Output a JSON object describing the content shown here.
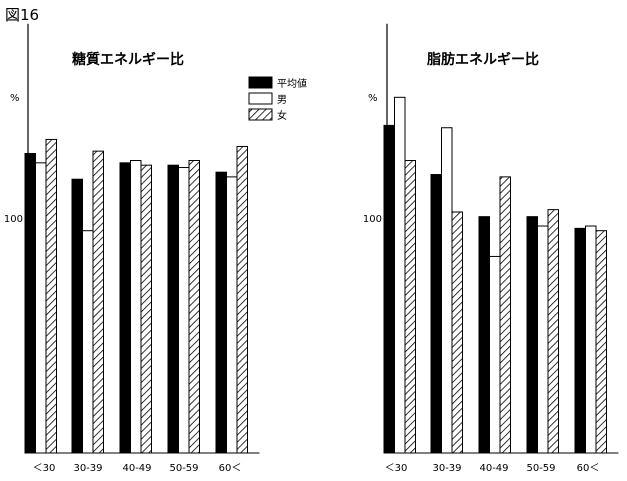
{
  "figure_label": "図16",
  "legend": [
    {
      "label": "平均値",
      "style": "solid"
    },
    {
      "label": "男",
      "style": "outline"
    },
    {
      "label": "女",
      "style": "hatched"
    }
  ],
  "colors": {
    "ink": "#000000",
    "background": "#ffffff"
  },
  "chart_data": [
    {
      "type": "bar",
      "title": "糖質エネルギー比",
      "unit": "%",
      "categories": [
        "＜30",
        "30-39",
        "40-49",
        "50-59",
        "60＜"
      ],
      "y_tick_labels": [
        {
          "value": 100,
          "label": "100"
        }
      ],
      "ylim": [
        0,
        180
      ],
      "series": [
        {
          "name": "平均値",
          "values": [
            128,
            117,
            124,
            123,
            120
          ]
        },
        {
          "name": "男",
          "values": [
            124,
            95,
            125,
            122,
            118
          ]
        },
        {
          "name": "女",
          "values": [
            134,
            129,
            123,
            125,
            131
          ]
        }
      ],
      "grid": false,
      "legend_position": "top-right"
    },
    {
      "type": "bar",
      "title": "脂肪エネルギー比",
      "unit": "%",
      "categories": [
        "＜30",
        "30-39",
        "40-49",
        "50-59",
        "60＜"
      ],
      "y_tick_labels": [
        {
          "value": 100,
          "label": "100"
        }
      ],
      "ylim": [
        0,
        180
      ],
      "series": [
        {
          "name": "平均値",
          "values": [
            140,
            119,
            101,
            101,
            96
          ]
        },
        {
          "name": "男",
          "values": [
            152,
            139,
            84,
            97,
            97
          ]
        },
        {
          "name": "女",
          "values": [
            125,
            103,
            118,
            104,
            95
          ]
        }
      ],
      "grid": false
    }
  ]
}
